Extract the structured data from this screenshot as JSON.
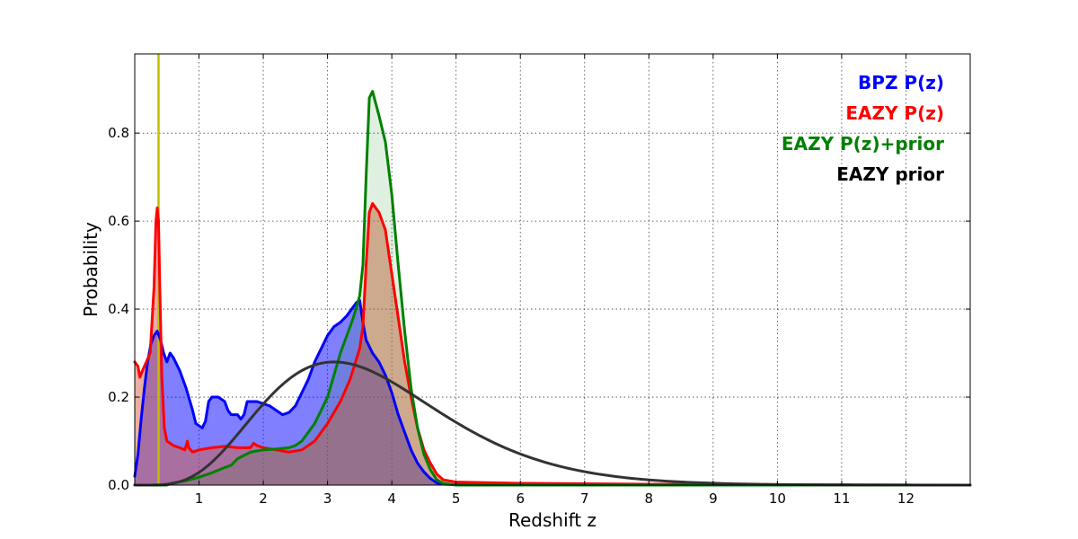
{
  "chart_data": {
    "type": "area",
    "title": "",
    "xlabel": "Redshift z",
    "ylabel": "Probability",
    "xlim": [
      0,
      13
    ],
    "ylim": [
      0,
      0.98
    ],
    "x_ticks": [
      1,
      2,
      3,
      4,
      5,
      6,
      7,
      8,
      9,
      10,
      11,
      12
    ],
    "y_ticks": [
      0.0,
      0.2,
      0.4,
      0.6,
      0.8
    ],
    "grid": true,
    "legend_placement": "top-right",
    "vertical_marker": {
      "x": 0.37,
      "color": "#bfbf00"
    },
    "series": [
      {
        "name": "BPZ P(z)",
        "color": "#0000ff",
        "fill": "#0000ff",
        "fill_opacity": 0.5,
        "points": [
          [
            0.0,
            0.02
          ],
          [
            0.05,
            0.07
          ],
          [
            0.1,
            0.15
          ],
          [
            0.15,
            0.22
          ],
          [
            0.2,
            0.28
          ],
          [
            0.25,
            0.32
          ],
          [
            0.3,
            0.34
          ],
          [
            0.35,
            0.35
          ],
          [
            0.4,
            0.33
          ],
          [
            0.45,
            0.3
          ],
          [
            0.5,
            0.28
          ],
          [
            0.55,
            0.3
          ],
          [
            0.6,
            0.29
          ],
          [
            0.7,
            0.26
          ],
          [
            0.8,
            0.22
          ],
          [
            0.9,
            0.17
          ],
          [
            0.95,
            0.14
          ],
          [
            1.0,
            0.135
          ],
          [
            1.05,
            0.13
          ],
          [
            1.1,
            0.145
          ],
          [
            1.15,
            0.19
          ],
          [
            1.2,
            0.2
          ],
          [
            1.3,
            0.2
          ],
          [
            1.4,
            0.19
          ],
          [
            1.45,
            0.17
          ],
          [
            1.5,
            0.16
          ],
          [
            1.6,
            0.16
          ],
          [
            1.65,
            0.15
          ],
          [
            1.7,
            0.16
          ],
          [
            1.75,
            0.19
          ],
          [
            1.8,
            0.19
          ],
          [
            1.9,
            0.19
          ],
          [
            2.0,
            0.185
          ],
          [
            2.1,
            0.18
          ],
          [
            2.2,
            0.17
          ],
          [
            2.3,
            0.16
          ],
          [
            2.4,
            0.165
          ],
          [
            2.5,
            0.18
          ],
          [
            2.6,
            0.21
          ],
          [
            2.7,
            0.24
          ],
          [
            2.8,
            0.28
          ],
          [
            2.9,
            0.31
          ],
          [
            3.0,
            0.34
          ],
          [
            3.1,
            0.36
          ],
          [
            3.2,
            0.37
          ],
          [
            3.3,
            0.385
          ],
          [
            3.4,
            0.405
          ],
          [
            3.45,
            0.415
          ],
          [
            3.5,
            0.42
          ],
          [
            3.55,
            0.37
          ],
          [
            3.6,
            0.33
          ],
          [
            3.7,
            0.3
          ],
          [
            3.8,
            0.28
          ],
          [
            3.9,
            0.25
          ],
          [
            4.0,
            0.21
          ],
          [
            4.1,
            0.16
          ],
          [
            4.2,
            0.12
          ],
          [
            4.3,
            0.08
          ],
          [
            4.4,
            0.05
          ],
          [
            4.5,
            0.03
          ],
          [
            4.6,
            0.015
          ],
          [
            4.7,
            0.005
          ],
          [
            4.8,
            0.002
          ],
          [
            5.0,
            0.001
          ],
          [
            13.0,
            0.0
          ]
        ]
      },
      {
        "name": "EAZY P(z)",
        "color": "#ff0000",
        "fill": "#d65f43",
        "fill_opacity": 0.5,
        "points": [
          [
            0.0,
            0.28
          ],
          [
            0.05,
            0.27
          ],
          [
            0.08,
            0.245
          ],
          [
            0.12,
            0.26
          ],
          [
            0.18,
            0.28
          ],
          [
            0.24,
            0.3
          ],
          [
            0.3,
            0.45
          ],
          [
            0.33,
            0.6
          ],
          [
            0.35,
            0.63
          ],
          [
            0.37,
            0.6
          ],
          [
            0.39,
            0.45
          ],
          [
            0.42,
            0.25
          ],
          [
            0.46,
            0.13
          ],
          [
            0.5,
            0.1
          ],
          [
            0.6,
            0.09
          ],
          [
            0.7,
            0.085
          ],
          [
            0.78,
            0.08
          ],
          [
            0.8,
            0.09
          ],
          [
            0.82,
            0.1
          ],
          [
            0.84,
            0.085
          ],
          [
            0.9,
            0.075
          ],
          [
            1.0,
            0.08
          ],
          [
            1.2,
            0.085
          ],
          [
            1.4,
            0.088
          ],
          [
            1.6,
            0.085
          ],
          [
            1.8,
            0.085
          ],
          [
            1.85,
            0.095
          ],
          [
            1.9,
            0.09
          ],
          [
            2.0,
            0.085
          ],
          [
            2.2,
            0.08
          ],
          [
            2.4,
            0.075
          ],
          [
            2.6,
            0.08
          ],
          [
            2.8,
            0.1
          ],
          [
            3.0,
            0.14
          ],
          [
            3.2,
            0.19
          ],
          [
            3.35,
            0.24
          ],
          [
            3.5,
            0.31
          ],
          [
            3.55,
            0.36
          ],
          [
            3.6,
            0.5
          ],
          [
            3.65,
            0.62
          ],
          [
            3.7,
            0.64
          ],
          [
            3.8,
            0.62
          ],
          [
            3.9,
            0.58
          ],
          [
            4.0,
            0.48
          ],
          [
            4.1,
            0.38
          ],
          [
            4.2,
            0.28
          ],
          [
            4.3,
            0.2
          ],
          [
            4.4,
            0.13
          ],
          [
            4.5,
            0.08
          ],
          [
            4.6,
            0.05
          ],
          [
            4.7,
            0.025
          ],
          [
            4.8,
            0.012
          ],
          [
            5.0,
            0.007
          ],
          [
            6.0,
            0.004
          ],
          [
            8.0,
            0.002
          ],
          [
            10.0,
            0.001
          ],
          [
            13.0,
            0.0
          ]
        ]
      },
      {
        "name": "EAZY P(z)+prior",
        "color": "#008000",
        "fill": "#008000",
        "fill_opacity": 0.12,
        "points": [
          [
            0.0,
            0.0
          ],
          [
            0.3,
            0.0
          ],
          [
            0.5,
            0.0
          ],
          [
            0.6,
            0.005
          ],
          [
            0.8,
            0.01
          ],
          [
            1.0,
            0.018
          ],
          [
            1.2,
            0.028
          ],
          [
            1.4,
            0.04
          ],
          [
            1.5,
            0.045
          ],
          [
            1.6,
            0.06
          ],
          [
            1.8,
            0.075
          ],
          [
            2.0,
            0.08
          ],
          [
            2.2,
            0.082
          ],
          [
            2.4,
            0.085
          ],
          [
            2.5,
            0.09
          ],
          [
            2.6,
            0.1
          ],
          [
            2.8,
            0.14
          ],
          [
            3.0,
            0.2
          ],
          [
            3.1,
            0.25
          ],
          [
            3.2,
            0.3
          ],
          [
            3.3,
            0.34
          ],
          [
            3.4,
            0.38
          ],
          [
            3.5,
            0.43
          ],
          [
            3.55,
            0.5
          ],
          [
            3.6,
            0.7
          ],
          [
            3.65,
            0.88
          ],
          [
            3.7,
            0.895
          ],
          [
            3.8,
            0.84
          ],
          [
            3.9,
            0.78
          ],
          [
            4.0,
            0.66
          ],
          [
            4.1,
            0.5
          ],
          [
            4.2,
            0.35
          ],
          [
            4.3,
            0.22
          ],
          [
            4.4,
            0.13
          ],
          [
            4.5,
            0.07
          ],
          [
            4.6,
            0.035
          ],
          [
            4.7,
            0.012
          ],
          [
            4.8,
            0.004
          ],
          [
            5.0,
            0.0
          ],
          [
            13.0,
            0.0
          ]
        ]
      },
      {
        "name": "EAZY prior",
        "color": "#333333",
        "fill": "none",
        "fill_opacity": 0,
        "mode": "gamma",
        "peak_x": 3.1,
        "peak_y": 0.28,
        "shape": 6.0
      }
    ]
  },
  "legend": {
    "items": [
      {
        "label": "BPZ P(z)",
        "color": "#0000ff"
      },
      {
        "label": "EAZY P(z)",
        "color": "#ff0000"
      },
      {
        "label": "EAZY P(z)+prior",
        "color": "#008000"
      },
      {
        "label": "EAZY prior",
        "color": "#000000"
      }
    ]
  }
}
